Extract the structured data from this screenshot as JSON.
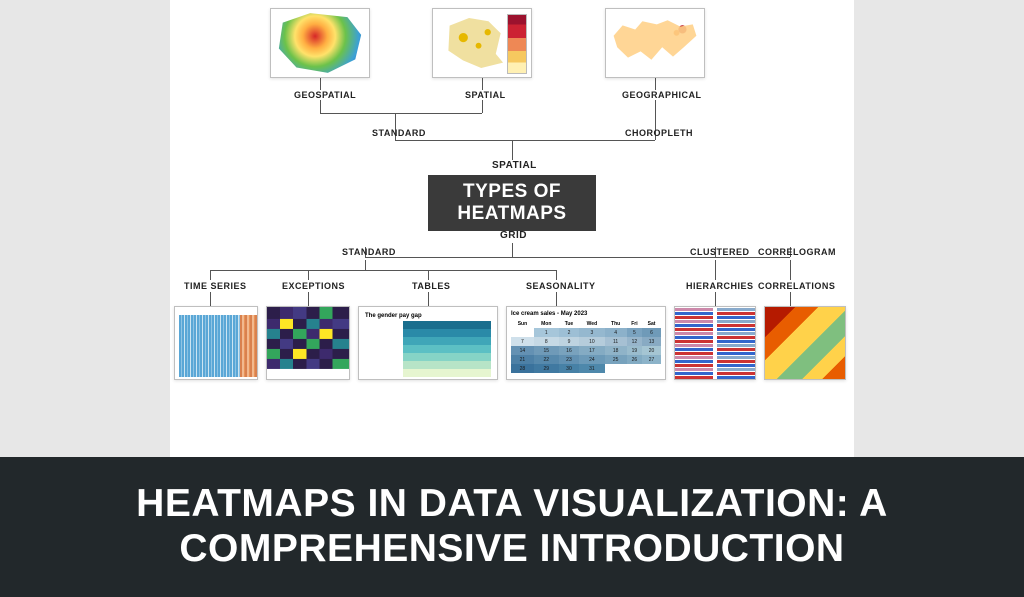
{
  "page": {
    "bg_color": "#e7e7e7",
    "canvas_color": "#ffffff"
  },
  "title_box": {
    "line1": "TYPES OF",
    "line2": "HEATMAPS",
    "bg": "#3a3a3a",
    "color": "#ffffff"
  },
  "main_category_top": "SPATIAL",
  "main_category_bottom": "GRID",
  "spatial_branches": {
    "standard": "STANDARD",
    "choropleth": "CHOROPLETH",
    "leaves": {
      "geospatial": "GEOSPATIAL",
      "spatial": "SPATIAL",
      "geographical": "GEOGRAPHICAL"
    }
  },
  "grid_branches": {
    "standard": "STANDARD",
    "clustered": "CLUSTERED",
    "correlogram": "CORRELOGRAM",
    "leaves": {
      "time_series": "TIME SERIES",
      "exceptions": "EXCEPTIONS",
      "tables": "TABLES",
      "seasonality": "SEASONALITY",
      "hierarchies": "HIERARCHIES",
      "correlations": "CORRELATIONS"
    }
  },
  "tables_thumb": {
    "title": "The gender pay gap",
    "row_colors": [
      "#1a6e8e",
      "#2a8aa8",
      "#3fa6b8",
      "#5cc0c4",
      "#86d4c6",
      "#b7e4c7",
      "#e6f5d0"
    ]
  },
  "seasonality_thumb": {
    "title": "Ice cream sales - May 2023",
    "days": [
      "Sun",
      "Mon",
      "Tue",
      "Wed",
      "Thu",
      "Fri",
      "Sat"
    ],
    "grid": [
      [
        "",
        1,
        2,
        3,
        4,
        5,
        6
      ],
      [
        7,
        8,
        9,
        10,
        11,
        12,
        13
      ],
      [
        14,
        15,
        16,
        17,
        18,
        19,
        20
      ],
      [
        21,
        22,
        23,
        24,
        25,
        26,
        27
      ],
      [
        28,
        29,
        30,
        31,
        "",
        "",
        ""
      ]
    ],
    "cell_colors": [
      [
        "#ffffff",
        "#a6c6da",
        "#9dbfd5",
        "#95b8cf",
        "#8cb1ca",
        "#7aa3c0",
        "#6f9ab8"
      ],
      [
        "#cfe0eb",
        "#c6d9e5",
        "#bed3e0",
        "#b5ccdb",
        "#a6c0d3",
        "#97b5cb",
        "#88aac3"
      ],
      [
        "#6491b3",
        "#6f9ab8",
        "#79a2bd",
        "#84abc3",
        "#8fb3c8",
        "#9abccd",
        "#a5c5d3"
      ],
      [
        "#4d80a6",
        "#5789ac",
        "#6291b2",
        "#6c9ab8",
        "#77a2bd",
        "#82abc3",
        "#8cb3c9"
      ],
      [
        "#3a729c",
        "#4079a1",
        "#4781a6",
        "#4e88ab",
        "#ffffff",
        "#ffffff",
        "#ffffff"
      ]
    ]
  },
  "footer": {
    "title": "HEATMAPS IN DATA VISUALIZATION: A COMPREHENSIVE INTRODUCTION",
    "bg": "#22282b",
    "color": "#ffffff"
  }
}
